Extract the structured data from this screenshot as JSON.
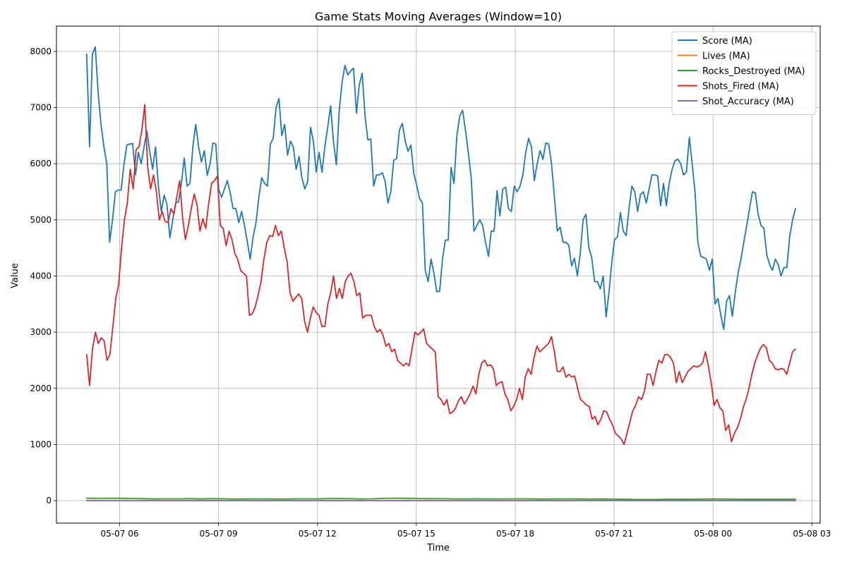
{
  "chart_data": {
    "type": "line",
    "title": "Game Stats Moving Averages (Window=10)",
    "xlabel": "Time",
    "ylabel": "Value",
    "x_ticks": [
      "05-07 06",
      "05-07 09",
      "05-07 12",
      "05-07 15",
      "05-07 18",
      "05-07 21",
      "05-08 00",
      "05-08 03"
    ],
    "x_range": [
      "2024-05-07 04:05",
      "2024-05-08 03:15"
    ],
    "ylim": [
      -400,
      8450
    ],
    "y_ticks": [
      0,
      1000,
      2000,
      3000,
      4000,
      5000,
      6000,
      7000,
      8000
    ],
    "grid": true,
    "legend_position": "top-right",
    "x_start": "2024-05-07 05:00",
    "x_end": "2024-05-08 02:30",
    "series": [
      {
        "name": "Score (MA)",
        "color": "#1f77b4",
        "values": [
          7950,
          6300,
          7950,
          8080,
          7250,
          6700,
          6300,
          6000,
          4600,
          5000,
          5500,
          5530,
          5530,
          6000,
          6330,
          6350,
          6360,
          5800,
          6200,
          6000,
          6300,
          6580,
          6200,
          5900,
          6300,
          5600,
          5150,
          5440,
          5270,
          4680,
          5000,
          5300,
          5320,
          5650,
          6100,
          5600,
          5650,
          6300,
          6700,
          6300,
          6030,
          6230,
          5790,
          6000,
          6370,
          6350,
          5550,
          5400,
          5550,
          5700,
          5490,
          5200,
          5200,
          4950,
          5150,
          4900,
          4600,
          4300,
          4700,
          4950,
          5400,
          5750,
          5650,
          5600,
          6350,
          6450,
          7000,
          7160,
          6500,
          6700,
          6150,
          6400,
          6300,
          5900,
          6130,
          5750,
          5550,
          5680,
          6650,
          6400,
          5850,
          6200,
          5850,
          6300,
          6650,
          7030,
          6400,
          5980,
          6950,
          7450,
          7750,
          7580,
          7650,
          7700,
          6900,
          7400,
          7610,
          6850,
          6420,
          6440,
          5600,
          5800,
          5800,
          5840,
          5690,
          5300,
          5500,
          6060,
          6090,
          6600,
          6720,
          6400,
          6220,
          6330,
          5820,
          5620,
          5380,
          5300,
          4100,
          3900,
          4300,
          4050,
          3720,
          3730,
          4300,
          4640,
          4640,
          5930,
          5650,
          6500,
          6850,
          6950,
          6600,
          6200,
          5750,
          4800,
          4900,
          5000,
          4900,
          4600,
          4350,
          4800,
          4800,
          5520,
          5070,
          5550,
          5580,
          5200,
          5150,
          5600,
          5500,
          5600,
          5800,
          6200,
          6450,
          6300,
          5700,
          6000,
          6230,
          6080,
          6370,
          6350,
          6000,
          5400,
          4800,
          4870,
          4600,
          4600,
          4550,
          4180,
          4320,
          4000,
          4400,
          5000,
          5100,
          4500,
          4330,
          3900,
          3900,
          3770,
          4000,
          3270,
          3700,
          4250,
          4650,
          4700,
          5130,
          4800,
          4720,
          5200,
          5600,
          5500,
          5150,
          5450,
          5500,
          5300,
          5550,
          5800,
          5800,
          5780,
          5250,
          5650,
          5250,
          5650,
          5900,
          6050,
          6080,
          6000,
          5800,
          5850,
          6470,
          6000,
          5500,
          4600,
          4350,
          4330,
          4300,
          4100,
          4300,
          3500,
          3600,
          3300,
          3050,
          3550,
          3650,
          3280,
          3700,
          4050,
          4300,
          4600,
          4900,
          5200,
          5500,
          5480,
          5100,
          4900,
          4850,
          4380,
          4200,
          4100,
          4300,
          4200,
          4000,
          4150,
          4150,
          4700,
          5000,
          5200
        ]
      },
      {
        "name": "Lives (MA)",
        "color": "#ff7f0e",
        "values": [
          3,
          3,
          3,
          3,
          3,
          3,
          3,
          3,
          3,
          3,
          3,
          3,
          3,
          3,
          3,
          3,
          3,
          3,
          3,
          3,
          3,
          3,
          3,
          3,
          3,
          3,
          3,
          3,
          3,
          3,
          3,
          3
        ]
      },
      {
        "name": "Rocks_Destroyed (MA)",
        "color": "#2ca02c",
        "values": [
          45,
          40,
          45,
          42,
          38,
          35,
          30,
          33,
          32,
          35,
          30,
          35,
          33,
          28,
          30,
          32,
          30,
          28,
          30,
          33,
          32,
          35,
          38,
          35,
          30,
          33,
          40,
          45,
          42,
          38,
          36,
          34,
          32,
          30,
          33,
          30,
          32,
          32,
          33,
          30,
          28,
          30,
          32,
          30,
          28,
          30,
          28,
          25,
          22,
          20,
          22,
          25,
          25,
          25,
          28,
          30,
          28,
          26,
          25,
          25,
          24,
          26,
          28
        ]
      },
      {
        "name": "Shots_Fired (MA)",
        "color": "#d62728",
        "values": [
          2600,
          2050,
          2700,
          3000,
          2800,
          2900,
          2850,
          2500,
          2600,
          3100,
          3600,
          3850,
          4500,
          5000,
          5300,
          5900,
          5550,
          6250,
          6300,
          6600,
          7050,
          5950,
          5550,
          5800,
          5500,
          5000,
          5150,
          4970,
          4950,
          5200,
          5100,
          5400,
          5700,
          5050,
          4650,
          4900,
          5200,
          5460,
          5260,
          4800,
          5020,
          4850,
          5300,
          5650,
          5700,
          5780,
          4900,
          4850,
          4540,
          4800,
          4650,
          4400,
          4300,
          4100,
          4050,
          4000,
          3300,
          3330,
          3450,
          3650,
          3900,
          4300,
          4600,
          4720,
          4700,
          4900,
          4720,
          4800,
          4500,
          4250,
          3700,
          3550,
          3620,
          3680,
          3600,
          3200,
          3000,
          3250,
          3450,
          3350,
          3300,
          3100,
          3100,
          3500,
          3700,
          4000,
          3600,
          3780,
          3600,
          3900,
          4000,
          4050,
          3900,
          3650,
          3700,
          3250,
          3300,
          3300,
          3300,
          3100,
          3000,
          3050,
          2950,
          2750,
          2800,
          2650,
          2700,
          2500,
          2450,
          2400,
          2450,
          2400,
          2700,
          3000,
          2950,
          3000,
          3060,
          2800,
          2750,
          2700,
          2650,
          1850,
          1800,
          1700,
          1800,
          1550,
          1580,
          1650,
          1780,
          1850,
          1720,
          1800,
          1900,
          2040,
          1900,
          2250,
          2450,
          2500,
          2400,
          2420,
          2350,
          2050,
          2100,
          2120,
          1900,
          1800,
          1600,
          1680,
          1800,
          2000,
          1800,
          2200,
          2350,
          2250,
          2550,
          2750,
          2650,
          2700,
          2750,
          2800,
          2920,
          2650,
          2300,
          2300,
          2380,
          2200,
          2250,
          2200,
          2220,
          2000,
          1800,
          1760,
          1700,
          1680,
          1450,
          1500,
          1350,
          1450,
          1600,
          1580,
          1450,
          1350,
          1200,
          1150,
          1100,
          1000,
          1200,
          1400,
          1600,
          1700,
          1850,
          1800,
          1950,
          2250,
          2250,
          2050,
          2300,
          2500,
          2450,
          2600,
          2600,
          2550,
          2450,
          2100,
          2300,
          2100,
          2200,
          2300,
          2350,
          2400,
          2380,
          2400,
          2450,
          2650,
          2400,
          2100,
          1700,
          1800,
          1650,
          1600,
          1250,
          1350,
          1050,
          1200,
          1300,
          1450,
          1650,
          1800,
          2000,
          2250,
          2450,
          2600,
          2720,
          2780,
          2720,
          2500,
          2450,
          2350,
          2330,
          2350,
          2340,
          2250,
          2450,
          2650,
          2700
        ]
      },
      {
        "name": "Shot_Accuracy (MA)",
        "color": "#9467bd",
        "values": [
          0.5,
          0.5,
          0.5,
          0.5,
          0.5,
          0.5,
          0.5,
          0.5,
          0.5,
          0.5,
          0.5,
          0.5
        ]
      }
    ]
  }
}
